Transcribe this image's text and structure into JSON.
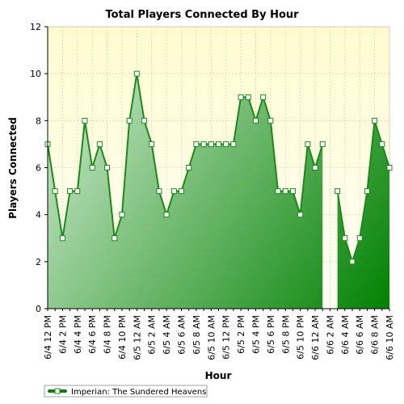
{
  "chart_data": {
    "type": "area",
    "title": "Total Players Connected By Hour",
    "xlabel": "Hour",
    "ylabel": "Players Connected",
    "ylim": [
      0,
      12
    ],
    "yticks": [
      0,
      2,
      4,
      6,
      8,
      10,
      12
    ],
    "grid": true,
    "legend_position": "bottom-left",
    "colors": {
      "line": "#1a8a1a",
      "fill_light": "#d3ecd3",
      "fill_dark": "#008000",
      "plot_bg_top": "#fffbd0",
      "plot_bg_bottom": "#fffff6"
    },
    "categories": [
      "6/4 12 PM",
      "",
      "6/4 2 PM",
      "",
      "6/4 4 PM",
      "",
      "6/4 6 PM",
      "",
      "6/4 8 PM",
      "",
      "6/4 10 PM",
      "",
      "6/5 12 AM",
      "",
      "6/5 2 AM",
      "",
      "6/5 4 AM",
      "",
      "6/5 6 AM",
      "",
      "6/5 8 AM",
      "",
      "6/5 10 AM",
      "",
      "6/5 12 PM",
      "",
      "6/5 2 PM",
      "",
      "6/5 4 PM",
      "",
      "6/5 6 PM",
      "",
      "6/5 8 PM",
      "",
      "6/5 10 PM",
      "",
      "6/6 12 AM",
      "",
      "6/6 2 AM",
      "",
      "6/6 4 AM",
      "",
      "6/6 6 AM",
      "",
      "6/6 8 AM",
      "",
      "6/6 10 AM"
    ],
    "series": [
      {
        "name": "Imperian: The Sundered Heavens",
        "values": [
          7,
          5,
          3,
          5,
          5,
          8,
          6,
          7,
          6,
          3,
          4,
          8,
          10,
          8,
          7,
          5,
          4,
          5,
          5,
          6,
          7,
          7,
          7,
          7,
          7,
          7,
          9,
          9,
          8,
          9,
          8,
          5,
          5,
          5,
          4,
          7,
          6,
          7,
          null,
          5,
          3,
          2,
          3,
          5,
          8,
          7,
          6
        ]
      }
    ]
  }
}
